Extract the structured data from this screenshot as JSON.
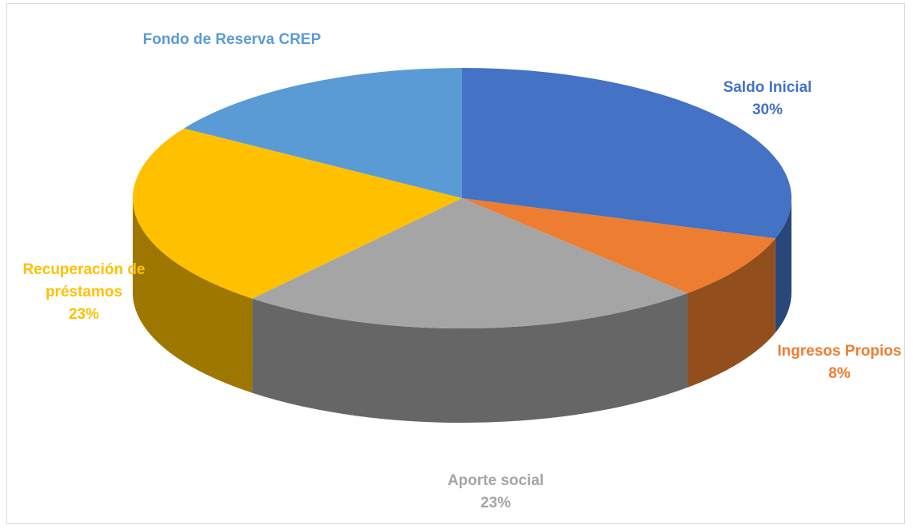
{
  "chart_data": {
    "type": "pie3d",
    "categories": [
      "Saldo Inicial",
      "Ingresos Propios",
      "Aporte social",
      "Recuperación de préstamos",
      "Fondo de Reserva CREP"
    ],
    "values": [
      30,
      8,
      23,
      23,
      16
    ],
    "value_labels": [
      "30%",
      "8%",
      "23%",
      "23%",
      null
    ],
    "colors": [
      "#4472c4",
      "#ed7d31",
      "#a5a5a5",
      "#ffc000",
      "#5b9bd5"
    ]
  }
}
